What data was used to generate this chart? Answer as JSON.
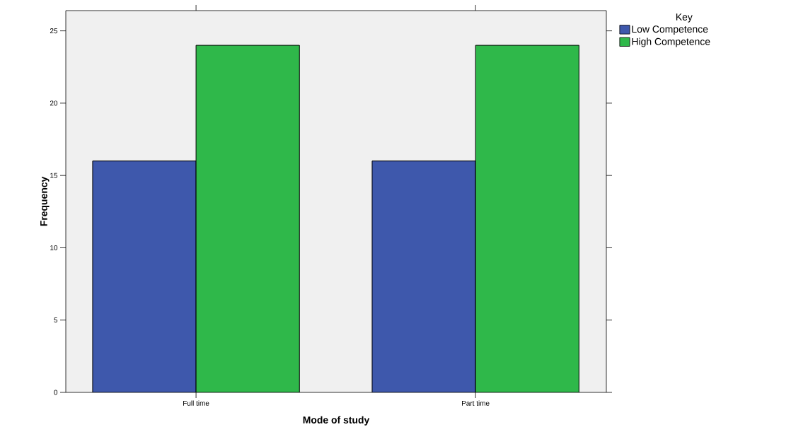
{
  "chart_data": {
    "type": "bar",
    "xlabel": "Mode of study",
    "ylabel": "Frequency",
    "legend_title": "Key",
    "categories": [
      "Full time",
      "Part time"
    ],
    "series": [
      {
        "name": "Low Competence",
        "color": "#3e58ac",
        "values": [
          16,
          16
        ]
      },
      {
        "name": "High Competence",
        "color": "#2fb84a",
        "values": [
          24,
          24
        ]
      }
    ],
    "ylim": [
      0,
      26.4
    ],
    "yticks": [
      0,
      5,
      10,
      15,
      20,
      25
    ],
    "grid": false,
    "legend": "top right"
  }
}
